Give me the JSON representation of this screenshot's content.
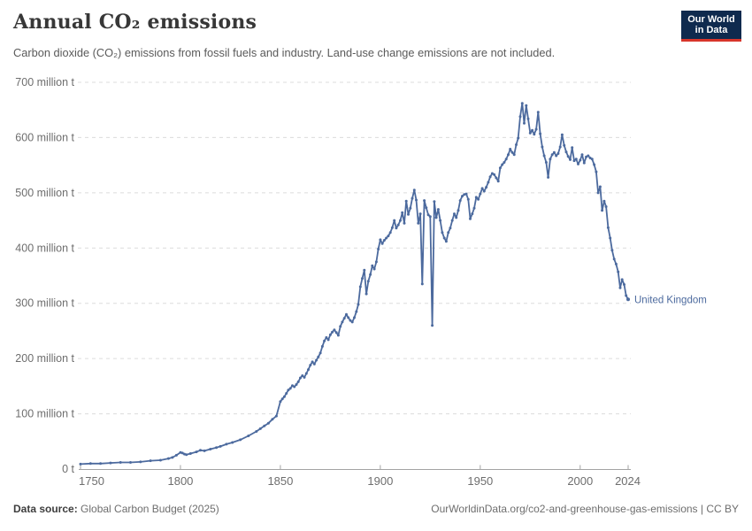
{
  "header": {
    "title": "Annual CO₂ emissions",
    "subtitle": "Carbon dioxide (CO₂) emissions from fossil fuels and industry. Land-use change emissions are not included."
  },
  "logo": {
    "line1": "Our World",
    "line2": "in Data",
    "bg_color": "#0f2a4e",
    "accent_color": "#d8352b"
  },
  "footer": {
    "source_label": "Data source:",
    "source_value": " Global Carbon Budget (2025)",
    "link": "OurWorldinData.org/co2-and-greenhouse-gas-emissions | CC BY"
  },
  "colors": {
    "line": "#4c6a9e",
    "end_label": "#4c6a9e",
    "gridline": "#dcdcdc",
    "axis": "#a3a3a3",
    "tick_label": "#6e6e6e"
  },
  "chart_data": {
    "type": "line",
    "title": "Annual CO₂ emissions",
    "unit": "million t",
    "xlabel": "",
    "ylabel": "",
    "xlim": [
      1750,
      2024
    ],
    "ylim": [
      0,
      700
    ],
    "grid": "horizontal-dashed",
    "legend_position": "end-of-line-label",
    "x_ticks": [
      1750,
      1800,
      1850,
      1900,
      1950,
      2000,
      2024
    ],
    "y_ticks": [
      {
        "value": 0,
        "label": "0 t"
      },
      {
        "value": 100,
        "label": "100 million t"
      },
      {
        "value": 200,
        "label": "200 million t"
      },
      {
        "value": 300,
        "label": "300 million t"
      },
      {
        "value": 400,
        "label": "400 million t"
      },
      {
        "value": 500,
        "label": "500 million t"
      },
      {
        "value": 600,
        "label": "600 million t"
      },
      {
        "value": 700,
        "label": "700 million t"
      }
    ],
    "series": [
      {
        "name": "United Kingdom",
        "color": "#4c6a9e",
        "points": [
          [
            1750,
            9
          ],
          [
            1755,
            10
          ],
          [
            1760,
            10
          ],
          [
            1765,
            11
          ],
          [
            1770,
            12
          ],
          [
            1775,
            12
          ],
          [
            1780,
            13
          ],
          [
            1785,
            15
          ],
          [
            1790,
            16
          ],
          [
            1794,
            19
          ],
          [
            1796,
            21
          ],
          [
            1798,
            25
          ],
          [
            1800,
            30
          ],
          [
            1801,
            29
          ],
          [
            1802,
            27
          ],
          [
            1803,
            26
          ],
          [
            1805,
            28
          ],
          [
            1808,
            31
          ],
          [
            1810,
            34
          ],
          [
            1812,
            33
          ],
          [
            1815,
            36
          ],
          [
            1818,
            39
          ],
          [
            1820,
            41
          ],
          [
            1823,
            45
          ],
          [
            1826,
            48
          ],
          [
            1830,
            53
          ],
          [
            1834,
            60
          ],
          [
            1838,
            68
          ],
          [
            1840,
            73
          ],
          [
            1842,
            78
          ],
          [
            1844,
            83
          ],
          [
            1846,
            90
          ],
          [
            1848,
            96
          ],
          [
            1850,
            122
          ],
          [
            1851,
            127
          ],
          [
            1852,
            131
          ],
          [
            1853,
            137
          ],
          [
            1854,
            143
          ],
          [
            1855,
            146
          ],
          [
            1856,
            151
          ],
          [
            1857,
            149
          ],
          [
            1858,
            153
          ],
          [
            1859,
            158
          ],
          [
            1860,
            165
          ],
          [
            1861,
            169
          ],
          [
            1862,
            166
          ],
          [
            1863,
            173
          ],
          [
            1864,
            180
          ],
          [
            1865,
            188
          ],
          [
            1866,
            194
          ],
          [
            1867,
            190
          ],
          [
            1868,
            197
          ],
          [
            1869,
            203
          ],
          [
            1870,
            210
          ],
          [
            1871,
            222
          ],
          [
            1872,
            232
          ],
          [
            1873,
            238
          ],
          [
            1874,
            234
          ],
          [
            1875,
            243
          ],
          [
            1876,
            248
          ],
          [
            1877,
            252
          ],
          [
            1878,
            247
          ],
          [
            1879,
            242
          ],
          [
            1880,
            258
          ],
          [
            1881,
            266
          ],
          [
            1882,
            273
          ],
          [
            1883,
            280
          ],
          [
            1884,
            274
          ],
          [
            1885,
            269
          ],
          [
            1886,
            266
          ],
          [
            1887,
            274
          ],
          [
            1888,
            285
          ],
          [
            1889,
            298
          ],
          [
            1890,
            330
          ],
          [
            1891,
            345
          ],
          [
            1892,
            360
          ],
          [
            1893,
            317
          ],
          [
            1894,
            340
          ],
          [
            1895,
            352
          ],
          [
            1896,
            368
          ],
          [
            1897,
            362
          ],
          [
            1898,
            375
          ],
          [
            1899,
            398
          ],
          [
            1900,
            415
          ],
          [
            1901,
            408
          ],
          [
            1902,
            414
          ],
          [
            1903,
            418
          ],
          [
            1904,
            422
          ],
          [
            1905,
            428
          ],
          [
            1906,
            437
          ],
          [
            1907,
            450
          ],
          [
            1908,
            436
          ],
          [
            1909,
            442
          ],
          [
            1910,
            450
          ],
          [
            1911,
            464
          ],
          [
            1912,
            445
          ],
          [
            1913,
            485
          ],
          [
            1914,
            461
          ],
          [
            1915,
            472
          ],
          [
            1916,
            490
          ],
          [
            1917,
            505
          ],
          [
            1918,
            487
          ],
          [
            1919,
            445
          ],
          [
            1920,
            462
          ],
          [
            1921,
            335
          ],
          [
            1922,
            486
          ],
          [
            1923,
            473
          ],
          [
            1924,
            460
          ],
          [
            1925,
            457
          ],
          [
            1926,
            260
          ],
          [
            1927,
            484
          ],
          [
            1928,
            455
          ],
          [
            1929,
            470
          ],
          [
            1930,
            450
          ],
          [
            1931,
            428
          ],
          [
            1932,
            418
          ],
          [
            1933,
            412
          ],
          [
            1934,
            428
          ],
          [
            1935,
            436
          ],
          [
            1936,
            450
          ],
          [
            1937,
            462
          ],
          [
            1938,
            455
          ],
          [
            1939,
            468
          ],
          [
            1940,
            486
          ],
          [
            1941,
            494
          ],
          [
            1942,
            497
          ],
          [
            1943,
            498
          ],
          [
            1944,
            488
          ],
          [
            1945,
            453
          ],
          [
            1946,
            462
          ],
          [
            1947,
            472
          ],
          [
            1948,
            492
          ],
          [
            1949,
            488
          ],
          [
            1950,
            498
          ],
          [
            1951,
            508
          ],
          [
            1952,
            503
          ],
          [
            1953,
            510
          ],
          [
            1954,
            519
          ],
          [
            1955,
            529
          ],
          [
            1956,
            535
          ],
          [
            1957,
            533
          ],
          [
            1958,
            527
          ],
          [
            1959,
            521
          ],
          [
            1960,
            545
          ],
          [
            1961,
            551
          ],
          [
            1962,
            555
          ],
          [
            1963,
            561
          ],
          [
            1964,
            569
          ],
          [
            1965,
            579
          ],
          [
            1966,
            573
          ],
          [
            1967,
            569
          ],
          [
            1968,
            587
          ],
          [
            1969,
            599
          ],
          [
            1970,
            638
          ],
          [
            1971,
            662
          ],
          [
            1972,
            626
          ],
          [
            1973,
            658
          ],
          [
            1974,
            634
          ],
          [
            1975,
            608
          ],
          [
            1976,
            613
          ],
          [
            1977,
            606
          ],
          [
            1978,
            615
          ],
          [
            1979,
            646
          ],
          [
            1980,
            607
          ],
          [
            1981,
            583
          ],
          [
            1982,
            567
          ],
          [
            1983,
            555
          ],
          [
            1984,
            528
          ],
          [
            1985,
            561
          ],
          [
            1986,
            569
          ],
          [
            1987,
            573
          ],
          [
            1988,
            567
          ],
          [
            1989,
            571
          ],
          [
            1990,
            583
          ],
          [
            1991,
            605
          ],
          [
            1992,
            586
          ],
          [
            1993,
            574
          ],
          [
            1994,
            566
          ],
          [
            1995,
            560
          ],
          [
            1996,
            582
          ],
          [
            1997,
            558
          ],
          [
            1998,
            561
          ],
          [
            1999,
            552
          ],
          [
            2000,
            559
          ],
          [
            2001,
            569
          ],
          [
            2002,
            554
          ],
          [
            2003,
            565
          ],
          [
            2004,
            567
          ],
          [
            2005,
            563
          ],
          [
            2006,
            561
          ],
          [
            2007,
            551
          ],
          [
            2008,
            538
          ],
          [
            2009,
            500
          ],
          [
            2010,
            511
          ],
          [
            2011,
            468
          ],
          [
            2012,
            485
          ],
          [
            2013,
            475
          ],
          [
            2014,
            437
          ],
          [
            2015,
            418
          ],
          [
            2016,
            396
          ],
          [
            2017,
            380
          ],
          [
            2018,
            371
          ],
          [
            2019,
            357
          ],
          [
            2020,
            328
          ],
          [
            2021,
            343
          ],
          [
            2022,
            334
          ],
          [
            2023,
            314
          ],
          [
            2024,
            307
          ]
        ]
      }
    ]
  }
}
